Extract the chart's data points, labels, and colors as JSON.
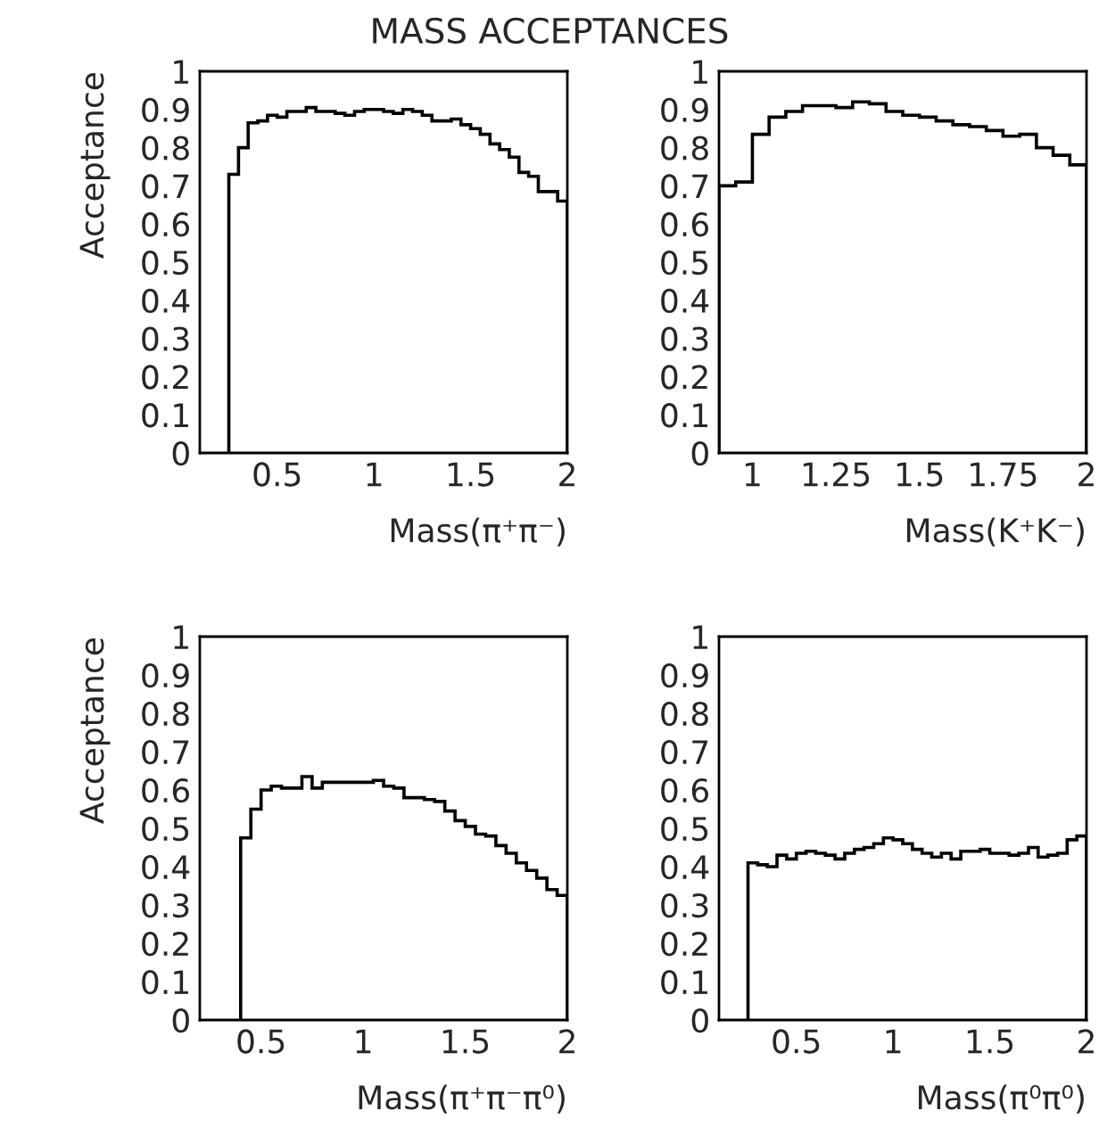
{
  "chart_data": [
    {
      "type": "histogram",
      "title": "MASS ACCEPTANCES",
      "ylabel": "Acceptance",
      "xlabel": "Mass(π⁺π⁻)",
      "color": "#000000",
      "grid": false,
      "bins": [
        0.25,
        0.3,
        0.35,
        0.4,
        0.45,
        0.5,
        0.55,
        0.6,
        0.65,
        0.7,
        0.75,
        0.8,
        0.85,
        0.9,
        0.95,
        1.0,
        1.05,
        1.1,
        1.15,
        1.2,
        1.25,
        1.3,
        1.35,
        1.4,
        1.45,
        1.5,
        1.55,
        1.6,
        1.65,
        1.7,
        1.75,
        1.8,
        1.85,
        1.9,
        1.95,
        2.0
      ],
      "values": [
        0.73,
        0.8,
        0.865,
        0.87,
        0.885,
        0.88,
        0.895,
        0.895,
        0.905,
        0.895,
        0.895,
        0.89,
        0.885,
        0.895,
        0.9,
        0.9,
        0.895,
        0.89,
        0.9,
        0.895,
        0.885,
        0.87,
        0.87,
        0.875,
        0.86,
        0.85,
        0.835,
        0.81,
        0.795,
        0.775,
        0.735,
        0.725,
        0.685,
        0.685,
        0.66
      ],
      "xlim": [
        0.1,
        2
      ],
      "xticks": [
        0.5,
        1,
        1.5,
        2
      ],
      "ylim": [
        0,
        1
      ],
      "yticks": [
        0,
        0.1,
        0.2,
        0.3,
        0.4,
        0.5,
        0.6,
        0.7,
        0.8,
        0.9,
        1
      ]
    },
    {
      "type": "histogram",
      "xlabel": "Mass(K⁺K⁻)",
      "color": "#000000",
      "grid": false,
      "bins": [
        0.9,
        0.95,
        1.0,
        1.05,
        1.1,
        1.15,
        1.2,
        1.25,
        1.3,
        1.35,
        1.4,
        1.45,
        1.5,
        1.55,
        1.6,
        1.65,
        1.7,
        1.75,
        1.8,
        1.85,
        1.9,
        1.95,
        2.0
      ],
      "values": [
        0.7,
        0.71,
        0.835,
        0.88,
        0.895,
        0.91,
        0.91,
        0.905,
        0.92,
        0.915,
        0.895,
        0.885,
        0.88,
        0.87,
        0.86,
        0.855,
        0.845,
        0.83,
        0.835,
        0.8,
        0.78,
        0.755
      ],
      "xlim": [
        0.9,
        2
      ],
      "xticks": [
        1,
        1.25,
        1.5,
        1.75,
        2
      ],
      "ylim": [
        0,
        1
      ],
      "yticks": [
        0,
        0.1,
        0.2,
        0.3,
        0.4,
        0.5,
        0.6,
        0.7,
        0.8,
        0.9,
        1
      ]
    },
    {
      "type": "histogram",
      "ylabel": "Acceptance",
      "xlabel": "Mass(π⁺π⁻π⁰)",
      "color": "#000000",
      "grid": false,
      "bins": [
        0.4,
        0.45,
        0.5,
        0.55,
        0.6,
        0.65,
        0.7,
        0.75,
        0.8,
        0.85,
        0.9,
        0.95,
        1.0,
        1.05,
        1.1,
        1.15,
        1.2,
        1.25,
        1.3,
        1.35,
        1.4,
        1.45,
        1.5,
        1.55,
        1.6,
        1.65,
        1.7,
        1.75,
        1.8,
        1.85,
        1.9,
        1.95,
        2.0
      ],
      "values": [
        0.475,
        0.55,
        0.6,
        0.61,
        0.605,
        0.605,
        0.635,
        0.605,
        0.62,
        0.62,
        0.62,
        0.62,
        0.62,
        0.625,
        0.61,
        0.605,
        0.58,
        0.58,
        0.575,
        0.57,
        0.545,
        0.52,
        0.505,
        0.485,
        0.48,
        0.455,
        0.435,
        0.41,
        0.39,
        0.37,
        0.34,
        0.325
      ],
      "xlim": [
        0.2,
        2
      ],
      "xticks": [
        0.5,
        1,
        1.5,
        2
      ],
      "ylim": [
        0,
        1
      ],
      "yticks": [
        0,
        0.1,
        0.2,
        0.3,
        0.4,
        0.5,
        0.6,
        0.7,
        0.8,
        0.9,
        1
      ]
    },
    {
      "type": "histogram",
      "xlabel": "Mass(π⁰π⁰)",
      "color": "#000000",
      "grid": false,
      "bins": [
        0.25,
        0.3,
        0.35,
        0.4,
        0.45,
        0.5,
        0.55,
        0.6,
        0.65,
        0.7,
        0.75,
        0.8,
        0.85,
        0.9,
        0.95,
        1.0,
        1.05,
        1.1,
        1.15,
        1.2,
        1.25,
        1.3,
        1.35,
        1.4,
        1.45,
        1.5,
        1.55,
        1.6,
        1.65,
        1.7,
        1.75,
        1.8,
        1.85,
        1.9,
        1.95,
        2.0
      ],
      "values": [
        0.41,
        0.405,
        0.4,
        0.43,
        0.42,
        0.435,
        0.44,
        0.435,
        0.43,
        0.42,
        0.435,
        0.445,
        0.45,
        0.46,
        0.475,
        0.47,
        0.46,
        0.445,
        0.435,
        0.425,
        0.435,
        0.42,
        0.44,
        0.44,
        0.445,
        0.435,
        0.435,
        0.43,
        0.435,
        0.45,
        0.425,
        0.43,
        0.435,
        0.47,
        0.48
      ],
      "xlim": [
        0.1,
        2
      ],
      "xticks": [
        0.5,
        1,
        1.5,
        2
      ],
      "ylim": [
        0,
        1
      ],
      "yticks": [
        0,
        0.1,
        0.2,
        0.3,
        0.4,
        0.5,
        0.6,
        0.7,
        0.8,
        0.9,
        1
      ]
    }
  ]
}
